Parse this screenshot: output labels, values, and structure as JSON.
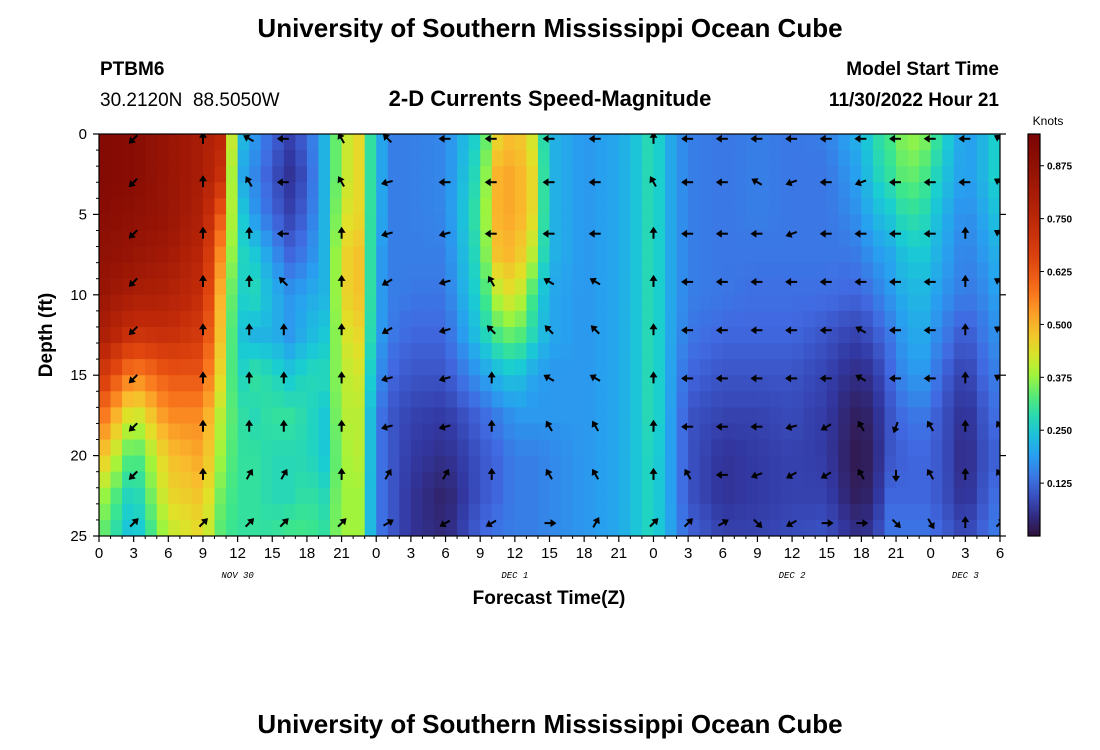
{
  "page": {
    "title": "University of Southern Mississippi Ocean Cube",
    "footer_title": "University of Southern Mississippi Ocean Cube"
  },
  "header": {
    "station_id": "PTBM6",
    "station_coords": "30.2120N  88.5050W",
    "plot_title": "2-D Currents Speed-Magnitude",
    "model_start_label": "Model Start Time",
    "model_start_value": "11/30/2022 Hour 21"
  },
  "chart_data": {
    "type": "heatmap",
    "title": "2-D Currents Speed-Magnitude",
    "xlabel": "Forecast Time(Z)",
    "ylabel": "Depth (ft)",
    "x_range_hours": [
      0,
      78
    ],
    "y_range_ft": [
      0,
      25
    ],
    "y_inverted": true,
    "x_tick_labels": [
      "0",
      "3",
      "6",
      "9",
      "12",
      "15",
      "18",
      "21",
      "0",
      "3",
      "6",
      "9",
      "12",
      "15",
      "18",
      "21",
      "0",
      "3",
      "6",
      "9",
      "12",
      "15",
      "18",
      "21",
      "0",
      "3",
      "6"
    ],
    "y_ticks": [
      0,
      5,
      10,
      15,
      20,
      25
    ],
    "day_labels": [
      {
        "text": "NOV 30",
        "hour": 12
      },
      {
        "text": "DEC 1",
        "hour": 36
      },
      {
        "text": "DEC 2",
        "hour": 60
      },
      {
        "text": "DEC 3",
        "hour": 75
      }
    ],
    "colorbar": {
      "units": "Knots",
      "min": 0,
      "max": 0.95,
      "ticks": [
        0.125,
        0.25,
        0.375,
        0.5,
        0.625,
        0.75,
        0.875
      ],
      "tick_labels": [
        "0.125",
        "0.250",
        "0.375",
        "0.500",
        "0.625",
        "0.750",
        "0.875"
      ]
    },
    "speed_field": {
      "description": "current speed (knots) at sampled hours; each profile lists values at depths 0..25 ft",
      "depths_ft": [
        0,
        2.5,
        5,
        7.5,
        10,
        12.5,
        15,
        17.5,
        20,
        22.5,
        25
      ],
      "profiles": [
        {
          "hour": 0,
          "speed": [
            0.92,
            0.92,
            0.9,
            0.88,
            0.85,
            0.8,
            0.7,
            0.6,
            0.5,
            0.4,
            0.35
          ]
        },
        {
          "hour": 3,
          "speed": [
            0.9,
            0.9,
            0.88,
            0.85,
            0.8,
            0.7,
            0.55,
            0.4,
            0.3,
            0.25,
            0.22
          ]
        },
        {
          "hour": 6,
          "speed": [
            0.85,
            0.85,
            0.85,
            0.82,
            0.78,
            0.72,
            0.62,
            0.55,
            0.48,
            0.45,
            0.4
          ]
        },
        {
          "hour": 9,
          "speed": [
            0.8,
            0.8,
            0.78,
            0.75,
            0.72,
            0.68,
            0.62,
            0.55,
            0.52,
            0.48,
            0.45
          ]
        },
        {
          "hour": 10.5,
          "speed": [
            0.75,
            0.72,
            0.62,
            0.55,
            0.5,
            0.48,
            0.45,
            0.4,
            0.38,
            0.35,
            0.33
          ]
        },
        {
          "hour": 12,
          "speed": [
            0.25,
            0.22,
            0.28,
            0.28,
            0.26,
            0.25,
            0.26,
            0.3,
            0.3,
            0.3,
            0.3
          ]
        },
        {
          "hour": 13.5,
          "speed": [
            0.18,
            0.16,
            0.18,
            0.25,
            0.28,
            0.22,
            0.3,
            0.28,
            0.3,
            0.3,
            0.3
          ]
        },
        {
          "hour": 15,
          "speed": [
            0.12,
            0.1,
            0.12,
            0.18,
            0.22,
            0.22,
            0.28,
            0.3,
            0.28,
            0.28,
            0.3
          ]
        },
        {
          "hour": 16.5,
          "speed": [
            0.08,
            0.06,
            0.08,
            0.12,
            0.18,
            0.18,
            0.25,
            0.3,
            0.28,
            0.28,
            0.32
          ]
        },
        {
          "hour": 18,
          "speed": [
            0.12,
            0.1,
            0.12,
            0.15,
            0.2,
            0.22,
            0.28,
            0.28,
            0.28,
            0.3,
            0.32
          ]
        },
        {
          "hour": 19.5,
          "speed": [
            0.22,
            0.22,
            0.22,
            0.22,
            0.22,
            0.25,
            0.28,
            0.25,
            0.25,
            0.28,
            0.3
          ]
        },
        {
          "hour": 21,
          "speed": [
            0.4,
            0.4,
            0.42,
            0.45,
            0.45,
            0.42,
            0.4,
            0.4,
            0.38,
            0.38,
            0.38
          ]
        },
        {
          "hour": 22.5,
          "speed": [
            0.45,
            0.45,
            0.45,
            0.48,
            0.48,
            0.45,
            0.42,
            0.4,
            0.4,
            0.38,
            0.38
          ]
        },
        {
          "hour": 24,
          "speed": [
            0.22,
            0.22,
            0.22,
            0.2,
            0.2,
            0.2,
            0.18,
            0.15,
            0.15,
            0.15,
            0.15
          ]
        },
        {
          "hour": 25.5,
          "speed": [
            0.15,
            0.15,
            0.15,
            0.15,
            0.15,
            0.14,
            0.12,
            0.1,
            0.1,
            0.1,
            0.1
          ]
        },
        {
          "hour": 27,
          "speed": [
            0.15,
            0.15,
            0.15,
            0.15,
            0.14,
            0.12,
            0.1,
            0.08,
            0.07,
            0.06,
            0.06
          ]
        },
        {
          "hour": 30,
          "speed": [
            0.16,
            0.16,
            0.16,
            0.15,
            0.14,
            0.12,
            0.1,
            0.07,
            0.05,
            0.03,
            0.04
          ]
        },
        {
          "hour": 33,
          "speed": [
            0.28,
            0.3,
            0.32,
            0.3,
            0.28,
            0.25,
            0.18,
            0.12,
            0.1,
            0.1,
            0.12
          ]
        },
        {
          "hour": 34.5,
          "speed": [
            0.45,
            0.5,
            0.5,
            0.48,
            0.4,
            0.32,
            0.22,
            0.15,
            0.12,
            0.12,
            0.14
          ]
        },
        {
          "hour": 36,
          "speed": [
            0.5,
            0.52,
            0.52,
            0.5,
            0.45,
            0.35,
            0.25,
            0.18,
            0.15,
            0.15,
            0.15
          ]
        },
        {
          "hour": 37.5,
          "speed": [
            0.42,
            0.45,
            0.45,
            0.4,
            0.32,
            0.28,
            0.2,
            0.18,
            0.15,
            0.15,
            0.15
          ]
        },
        {
          "hour": 39,
          "speed": [
            0.22,
            0.22,
            0.22,
            0.22,
            0.2,
            0.2,
            0.18,
            0.18,
            0.16,
            0.16,
            0.16
          ]
        },
        {
          "hour": 42,
          "speed": [
            0.18,
            0.18,
            0.18,
            0.18,
            0.18,
            0.18,
            0.18,
            0.18,
            0.18,
            0.18,
            0.18
          ]
        },
        {
          "hour": 45,
          "speed": [
            0.2,
            0.2,
            0.2,
            0.2,
            0.2,
            0.2,
            0.2,
            0.2,
            0.2,
            0.2,
            0.2
          ]
        },
        {
          "hour": 47,
          "speed": [
            0.26,
            0.26,
            0.26,
            0.26,
            0.26,
            0.26,
            0.26,
            0.26,
            0.26,
            0.26,
            0.26
          ]
        },
        {
          "hour": 48,
          "speed": [
            0.3,
            0.3,
            0.3,
            0.3,
            0.3,
            0.3,
            0.3,
            0.3,
            0.28,
            0.28,
            0.28
          ]
        },
        {
          "hour": 49,
          "speed": [
            0.22,
            0.22,
            0.22,
            0.22,
            0.22,
            0.22,
            0.22,
            0.22,
            0.22,
            0.22,
            0.22
          ]
        },
        {
          "hour": 51,
          "speed": [
            0.15,
            0.15,
            0.15,
            0.15,
            0.15,
            0.14,
            0.12,
            0.1,
            0.1,
            0.1,
            0.12
          ]
        },
        {
          "hour": 54,
          "speed": [
            0.14,
            0.14,
            0.14,
            0.14,
            0.14,
            0.12,
            0.1,
            0.08,
            0.06,
            0.06,
            0.08
          ]
        },
        {
          "hour": 57,
          "speed": [
            0.15,
            0.15,
            0.15,
            0.14,
            0.13,
            0.12,
            0.1,
            0.08,
            0.07,
            0.07,
            0.08
          ]
        },
        {
          "hour": 60,
          "speed": [
            0.14,
            0.14,
            0.14,
            0.14,
            0.13,
            0.12,
            0.1,
            0.09,
            0.08,
            0.08,
            0.09
          ]
        },
        {
          "hour": 63,
          "speed": [
            0.15,
            0.14,
            0.14,
            0.14,
            0.13,
            0.1,
            0.08,
            0.07,
            0.07,
            0.08,
            0.1
          ]
        },
        {
          "hour": 65,
          "speed": [
            0.2,
            0.18,
            0.16,
            0.14,
            0.12,
            0.08,
            0.05,
            0.03,
            0.02,
            0.03,
            0.06
          ]
        },
        {
          "hour": 66,
          "speed": [
            0.22,
            0.2,
            0.18,
            0.15,
            0.12,
            0.08,
            0.05,
            0.02,
            0.01,
            0.02,
            0.05
          ]
        },
        {
          "hour": 67,
          "speed": [
            0.28,
            0.26,
            0.22,
            0.18,
            0.14,
            0.1,
            0.06,
            0.04,
            0.03,
            0.04,
            0.07
          ]
        },
        {
          "hour": 68.5,
          "speed": [
            0.32,
            0.3,
            0.25,
            0.2,
            0.18,
            0.14,
            0.12,
            0.1,
            0.1,
            0.12,
            0.14
          ]
        },
        {
          "hour": 70,
          "speed": [
            0.38,
            0.35,
            0.3,
            0.25,
            0.22,
            0.2,
            0.18,
            0.14,
            0.12,
            0.12,
            0.14
          ]
        },
        {
          "hour": 71.5,
          "speed": [
            0.36,
            0.32,
            0.28,
            0.25,
            0.22,
            0.2,
            0.18,
            0.14,
            0.12,
            0.12,
            0.14
          ]
        },
        {
          "hour": 73,
          "speed": [
            0.28,
            0.25,
            0.22,
            0.2,
            0.18,
            0.15,
            0.12,
            0.1,
            0.1,
            0.1,
            0.12
          ]
        },
        {
          "hour": 75,
          "speed": [
            0.18,
            0.18,
            0.16,
            0.15,
            0.14,
            0.1,
            0.07,
            0.05,
            0.04,
            0.05,
            0.08
          ]
        },
        {
          "hour": 76.5,
          "speed": [
            0.22,
            0.22,
            0.2,
            0.18,
            0.16,
            0.14,
            0.12,
            0.1,
            0.09,
            0.1,
            0.12
          ]
        },
        {
          "hour": 78,
          "speed": [
            0.28,
            0.28,
            0.25,
            0.22,
            0.2,
            0.18,
            0.16,
            0.14,
            0.12,
            0.14,
            0.16
          ]
        }
      ]
    },
    "vectors": {
      "description": "current direction arrows at sampled times and depths; angle in degrees (0 = pointing up/north on plot, clockwise)",
      "hours": [
        3,
        9,
        13,
        16,
        21,
        25,
        30,
        34,
        39,
        43,
        48,
        51,
        54,
        57,
        60,
        63,
        66,
        69,
        72,
        75,
        78
      ],
      "depths_ft": [
        0.3,
        3.0,
        6.2,
        9.2,
        12.2,
        15.2,
        18.2,
        21.2,
        24.2
      ],
      "angles": [
        [
          225,
          0,
          300,
          270,
          330,
          315,
          270,
          270,
          270,
          270,
          0,
          270,
          270,
          270,
          270,
          270,
          270,
          270,
          270,
          270,
          300
        ],
        [
          225,
          0,
          330,
          270,
          330,
          255,
          270,
          270,
          270,
          270,
          330,
          270,
          270,
          300,
          250,
          270,
          250,
          270,
          270,
          270,
          300
        ],
        [
          225,
          0,
          0,
          270,
          0,
          255,
          255,
          270,
          270,
          270,
          0,
          270,
          270,
          270,
          250,
          270,
          270,
          270,
          270,
          0,
          300
        ],
        [
          225,
          0,
          0,
          315,
          0,
          240,
          255,
          330,
          300,
          300,
          0,
          270,
          270,
          270,
          270,
          270,
          270,
          270,
          270,
          0,
          300
        ],
        [
          225,
          0,
          0,
          0,
          0,
          240,
          255,
          315,
          315,
          315,
          0,
          270,
          270,
          270,
          270,
          270,
          300,
          270,
          270,
          0,
          300
        ],
        [
          225,
          0,
          0,
          0,
          0,
          255,
          255,
          0,
          300,
          300,
          0,
          270,
          270,
          270,
          270,
          270,
          300,
          270,
          270,
          0,
          300
        ],
        [
          225,
          0,
          0,
          0,
          0,
          255,
          255,
          0,
          330,
          330,
          0,
          270,
          270,
          270,
          255,
          240,
          330,
          200,
          330,
          0,
          330
        ],
        [
          225,
          0,
          30,
          30,
          0,
          30,
          30,
          0,
          330,
          330,
          0,
          330,
          270,
          250,
          240,
          240,
          330,
          180,
          330,
          0,
          330
        ],
        [
          45,
          45,
          45,
          45,
          45,
          60,
          240,
          240,
          90,
          30,
          45,
          45,
          60,
          135,
          240,
          90,
          90,
          135,
          150,
          0,
          45
        ]
      ]
    }
  }
}
